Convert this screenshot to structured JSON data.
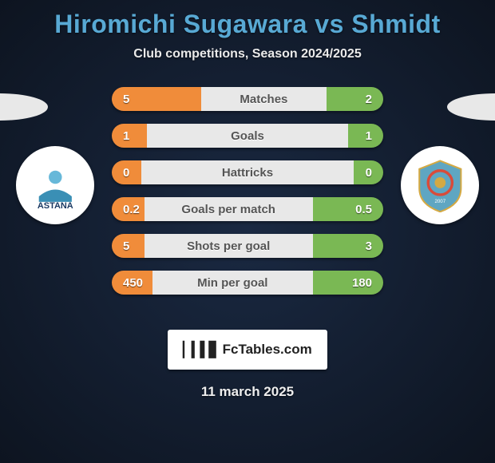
{
  "title": "Hiromichi Sugawara vs Shmidt",
  "subtitle": "Club competitions, Season 2024/2025",
  "date": "11 march 2025",
  "branding": "FcTables.com",
  "colors": {
    "left_bar": "#f08c3a",
    "mid_bar": "#e8e8e8",
    "right_bar": "#7ab854",
    "title": "#58a9d4"
  },
  "rows": [
    {
      "label": "Matches",
      "left": "5",
      "right": "2",
      "left_pct": 33,
      "mid_pct": 46,
      "right_pct": 21
    },
    {
      "label": "Goals",
      "left": "1",
      "right": "1",
      "left_pct": 13,
      "mid_pct": 74,
      "right_pct": 13
    },
    {
      "label": "Hattricks",
      "left": "0",
      "right": "0",
      "left_pct": 11,
      "mid_pct": 78,
      "right_pct": 11
    },
    {
      "label": "Goals per match",
      "left": "0.2",
      "right": "0.5",
      "left_pct": 12,
      "mid_pct": 62,
      "right_pct": 26
    },
    {
      "label": "Shots per goal",
      "left": "5",
      "right": "3",
      "left_pct": 12,
      "mid_pct": 62,
      "right_pct": 26
    },
    {
      "label": "Min per goal",
      "left": "450",
      "right": "180",
      "left_pct": 15,
      "mid_pct": 59,
      "right_pct": 26
    }
  ]
}
